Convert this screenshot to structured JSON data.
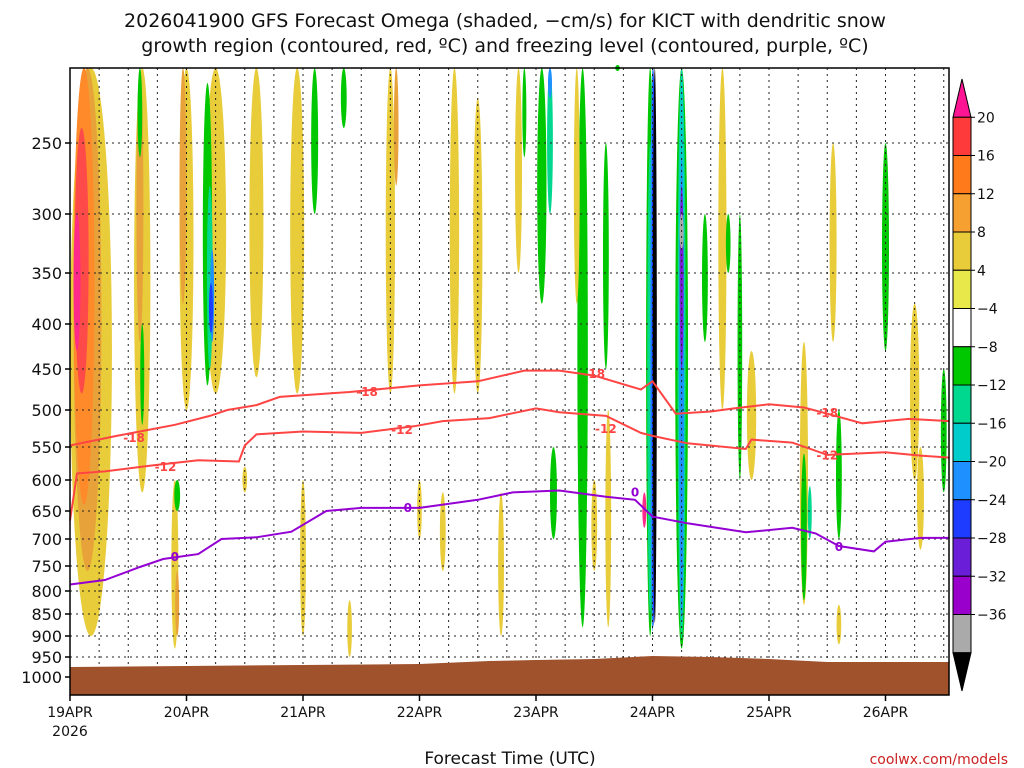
{
  "title_line1": "2026041900 GFS Forecast Omega (shaded, −cm/s) for KICT with dendritic snow",
  "title_line2": "growth region (contoured, red, ºC) and freezing level (contoured, purple, ºC)",
  "credit": "coolwx.com/models",
  "chart_data": {
    "type": "heatmap",
    "title": "2026041900 GFS Forecast Omega (shaded, −cm/s) for KICT with dendritic snow growth region (contoured, red, ºC) and freezing level (contoured, purple, ºC)",
    "xlabel": "Forecast Time (UTC)",
    "ylabel": "",
    "x_range_days": [
      0,
      7.55
    ],
    "x_ticks": [
      {
        "day": 0,
        "label": "19APR",
        "sub": "2026"
      },
      {
        "day": 1,
        "label": "20APR",
        "sub": ""
      },
      {
        "day": 2,
        "label": "21APR",
        "sub": ""
      },
      {
        "day": 3,
        "label": "22APR",
        "sub": ""
      },
      {
        "day": 4,
        "label": "23APR",
        "sub": ""
      },
      {
        "day": 5,
        "label": "24APR",
        "sub": ""
      },
      {
        "day": 6,
        "label": "25APR",
        "sub": ""
      },
      {
        "day": 7,
        "label": "26APR",
        "sub": ""
      }
    ],
    "y_ticks_hPa": [
      250,
      300,
      350,
      400,
      450,
      500,
      550,
      600,
      650,
      700,
      750,
      800,
      850,
      900,
      950,
      1000
    ],
    "y_range_hPa": [
      200,
      1030
    ],
    "colorbar": {
      "labels": [
        "20",
        "16",
        "12",
        "8",
        "4",
        "−4",
        "−8",
        "−12",
        "−16",
        "−20",
        "−24",
        "−28",
        "−32",
        "−36"
      ],
      "colors": [
        "#ff1493",
        "#ff3a3a",
        "#ff7a1a",
        "#f5a030",
        "#e8cc3a",
        "#e8e84a",
        "#ffffff",
        "#00c800",
        "#00d890",
        "#00cccc",
        "#1e90ff",
        "#1e3cff",
        "#6a1ed8",
        "#9a00cc",
        "#aaaaaa",
        "#000000"
      ]
    },
    "surface_color": "#a0522d",
    "dgz_minus12": {
      "name": "-12",
      "color": "#ff4444",
      "points": [
        [
          0.0,
          667
        ],
        [
          0.06,
          590
        ],
        [
          0.3,
          587
        ],
        [
          0.7,
          578
        ],
        [
          1.1,
          570
        ],
        [
          1.45,
          572
        ],
        [
          1.5,
          548
        ],
        [
          1.6,
          533
        ],
        [
          2.0,
          529
        ],
        [
          2.5,
          531
        ],
        [
          2.95,
          522
        ],
        [
          3.2,
          515
        ],
        [
          3.6,
          511
        ],
        [
          4.0,
          498
        ],
        [
          4.2,
          503
        ],
        [
          4.6,
          508
        ],
        [
          4.9,
          531
        ],
        [
          5.0,
          535
        ],
        [
          5.3,
          545
        ],
        [
          5.8,
          553
        ],
        [
          5.85,
          540
        ],
        [
          6.2,
          544
        ],
        [
          6.5,
          562
        ],
        [
          7.0,
          558
        ],
        [
          7.3,
          563
        ],
        [
          7.55,
          566
        ]
      ],
      "labels": [
        {
          "day": 0.82,
          "p": 580
        },
        {
          "day": 2.85,
          "p": 527
        },
        {
          "day": 4.6,
          "p": 526
        },
        {
          "day": 6.5,
          "p": 563
        }
      ]
    },
    "dgz_minus18": {
      "name": "-18",
      "color": "#ff4444",
      "points": [
        [
          0.0,
          548
        ],
        [
          0.4,
          535
        ],
        [
          0.9,
          520
        ],
        [
          1.2,
          508
        ],
        [
          1.35,
          500
        ],
        [
          1.6,
          494
        ],
        [
          1.8,
          484
        ],
        [
          2.4,
          478
        ],
        [
          3.0,
          470
        ],
        [
          3.5,
          465
        ],
        [
          3.9,
          452
        ],
        [
          4.2,
          452
        ],
        [
          4.5,
          458
        ],
        [
          4.9,
          475
        ],
        [
          5.0,
          465
        ],
        [
          5.2,
          505
        ],
        [
          5.5,
          502
        ],
        [
          5.7,
          498
        ],
        [
          6.0,
          493
        ],
        [
          6.3,
          497
        ],
        [
          6.5,
          505
        ],
        [
          6.8,
          518
        ],
        [
          7.2,
          512
        ],
        [
          7.55,
          515
        ]
      ],
      "labels": [
        {
          "day": 0.55,
          "p": 538
        },
        {
          "day": 2.55,
          "p": 478
        },
        {
          "day": 4.5,
          "p": 456
        },
        {
          "day": 6.5,
          "p": 504
        }
      ]
    },
    "freezing_level_0C": {
      "name": "0",
      "color": "#9400d3",
      "points": [
        [
          0.0,
          787
        ],
        [
          0.3,
          778
        ],
        [
          0.6,
          752
        ],
        [
          0.8,
          737
        ],
        [
          1.1,
          728
        ],
        [
          1.3,
          700
        ],
        [
          1.6,
          697
        ],
        [
          1.9,
          687
        ],
        [
          2.2,
          650
        ],
        [
          2.5,
          645
        ],
        [
          3.0,
          645
        ],
        [
          3.5,
          632
        ],
        [
          3.8,
          620
        ],
        [
          4.2,
          617
        ],
        [
          4.6,
          627
        ],
        [
          4.85,
          632
        ],
        [
          5.0,
          660
        ],
        [
          5.3,
          672
        ],
        [
          5.8,
          688
        ],
        [
          6.2,
          680
        ],
        [
          6.4,
          690
        ],
        [
          6.6,
          713
        ],
        [
          6.9,
          723
        ],
        [
          7.0,
          705
        ],
        [
          7.3,
          698
        ],
        [
          7.55,
          698
        ]
      ],
      "labels": [
        {
          "day": 0.9,
          "p": 733
        },
        {
          "day": 2.9,
          "p": 645
        },
        {
          "day": 4.85,
          "p": 620
        },
        {
          "day": 6.6,
          "p": 715
        }
      ]
    }
  }
}
